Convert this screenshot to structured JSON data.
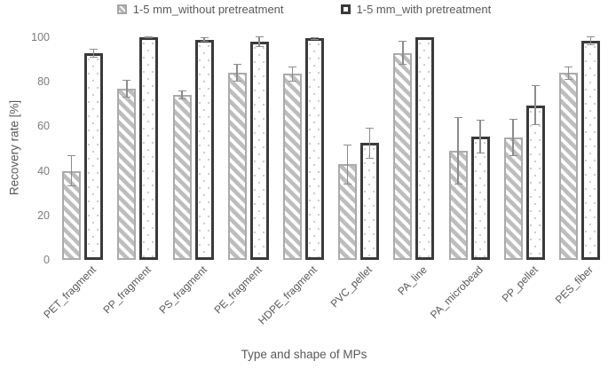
{
  "chart_data": {
    "type": "bar",
    "title": "",
    "xlabel": "Type and shape of MPs",
    "ylabel": "Recovery rate [%]",
    "ylim": [
      0,
      100
    ],
    "yticks": [
      0,
      20,
      40,
      60,
      80,
      100
    ],
    "grid": false,
    "legend_position": "top-center",
    "categories": [
      "PET_fragment",
      "PP_fragment",
      "PS_fragment",
      "PE_fragment",
      "HDPE_fragment",
      "PVC_pellet",
      "PA_line",
      "PA_microbead",
      "PP_pellet",
      "PES_fiber"
    ],
    "series": [
      {
        "name": "1-5 mm_without pretreatment",
        "style": "hatched-gray",
        "values": [
          40,
          77,
          74,
          84,
          83.5,
          43,
          93,
          49,
          55,
          84
        ],
        "errors": [
          7,
          4,
          2,
          4,
          3.5,
          9,
          5.5,
          15,
          8.5,
          3
        ]
      },
      {
        "name": "1-5 mm_with pretreatment",
        "style": "dotted-black",
        "values": [
          93,
          100,
          99,
          98,
          99.5,
          52.5,
          100,
          55.5,
          69.5,
          98.5
        ],
        "errors": [
          2,
          0.5,
          1,
          2.5,
          0.5,
          7,
          0.3,
          7.5,
          9,
          2
        ]
      }
    ],
    "colors": {
      "gray_bar_border": "#ababab",
      "gray_bar_hatch": "#bdbdbd",
      "black_bar_border": "#3a3a3a",
      "dot_pattern": "#c4c4c4",
      "error_bar": "#8c8c8c",
      "axis_text": "#595959",
      "tick_text": "#7c7c7c"
    }
  }
}
